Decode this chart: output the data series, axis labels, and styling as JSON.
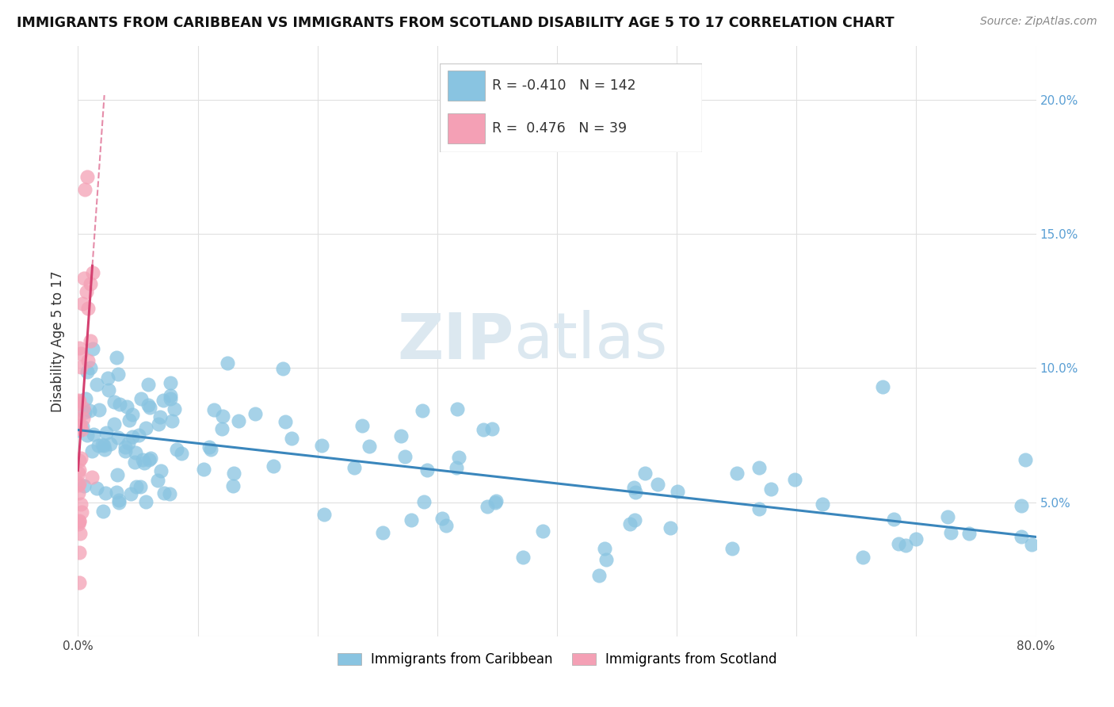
{
  "title": "IMMIGRANTS FROM CARIBBEAN VS IMMIGRANTS FROM SCOTLAND DISABILITY AGE 5 TO 17 CORRELATION CHART",
  "source": "Source: ZipAtlas.com",
  "ylabel": "Disability Age 5 to 17",
  "xlim": [
    0.0,
    0.8
  ],
  "ylim": [
    0.0,
    0.22
  ],
  "xticks": [
    0.0,
    0.1,
    0.2,
    0.3,
    0.4,
    0.5,
    0.6,
    0.7,
    0.8
  ],
  "yticks": [
    0.0,
    0.05,
    0.1,
    0.15,
    0.2
  ],
  "ytick_labels": [
    "",
    "5.0%",
    "10.0%",
    "15.0%",
    "20.0%"
  ],
  "xtick_labels_show": [
    "0.0%",
    "80.0%"
  ],
  "caribbean_color": "#89c4e1",
  "scotland_color": "#f4a0b5",
  "caribbean_line_color": "#3a86bc",
  "scotland_line_color": "#d44070",
  "caribbean_R": -0.41,
  "caribbean_N": 142,
  "scotland_R": 0.476,
  "scotland_N": 39,
  "legend_caribbean": "Immigrants from Caribbean",
  "legend_scotland": "Immigrants from Scotland",
  "watermark_zip": "ZIP",
  "watermark_atlas": "atlas",
  "tick_color": "#5a9fd4",
  "grid_color": "#e0e0e0",
  "title_fontsize": 12.5,
  "source_fontsize": 10,
  "ylabel_fontsize": 12,
  "tick_fontsize": 11
}
